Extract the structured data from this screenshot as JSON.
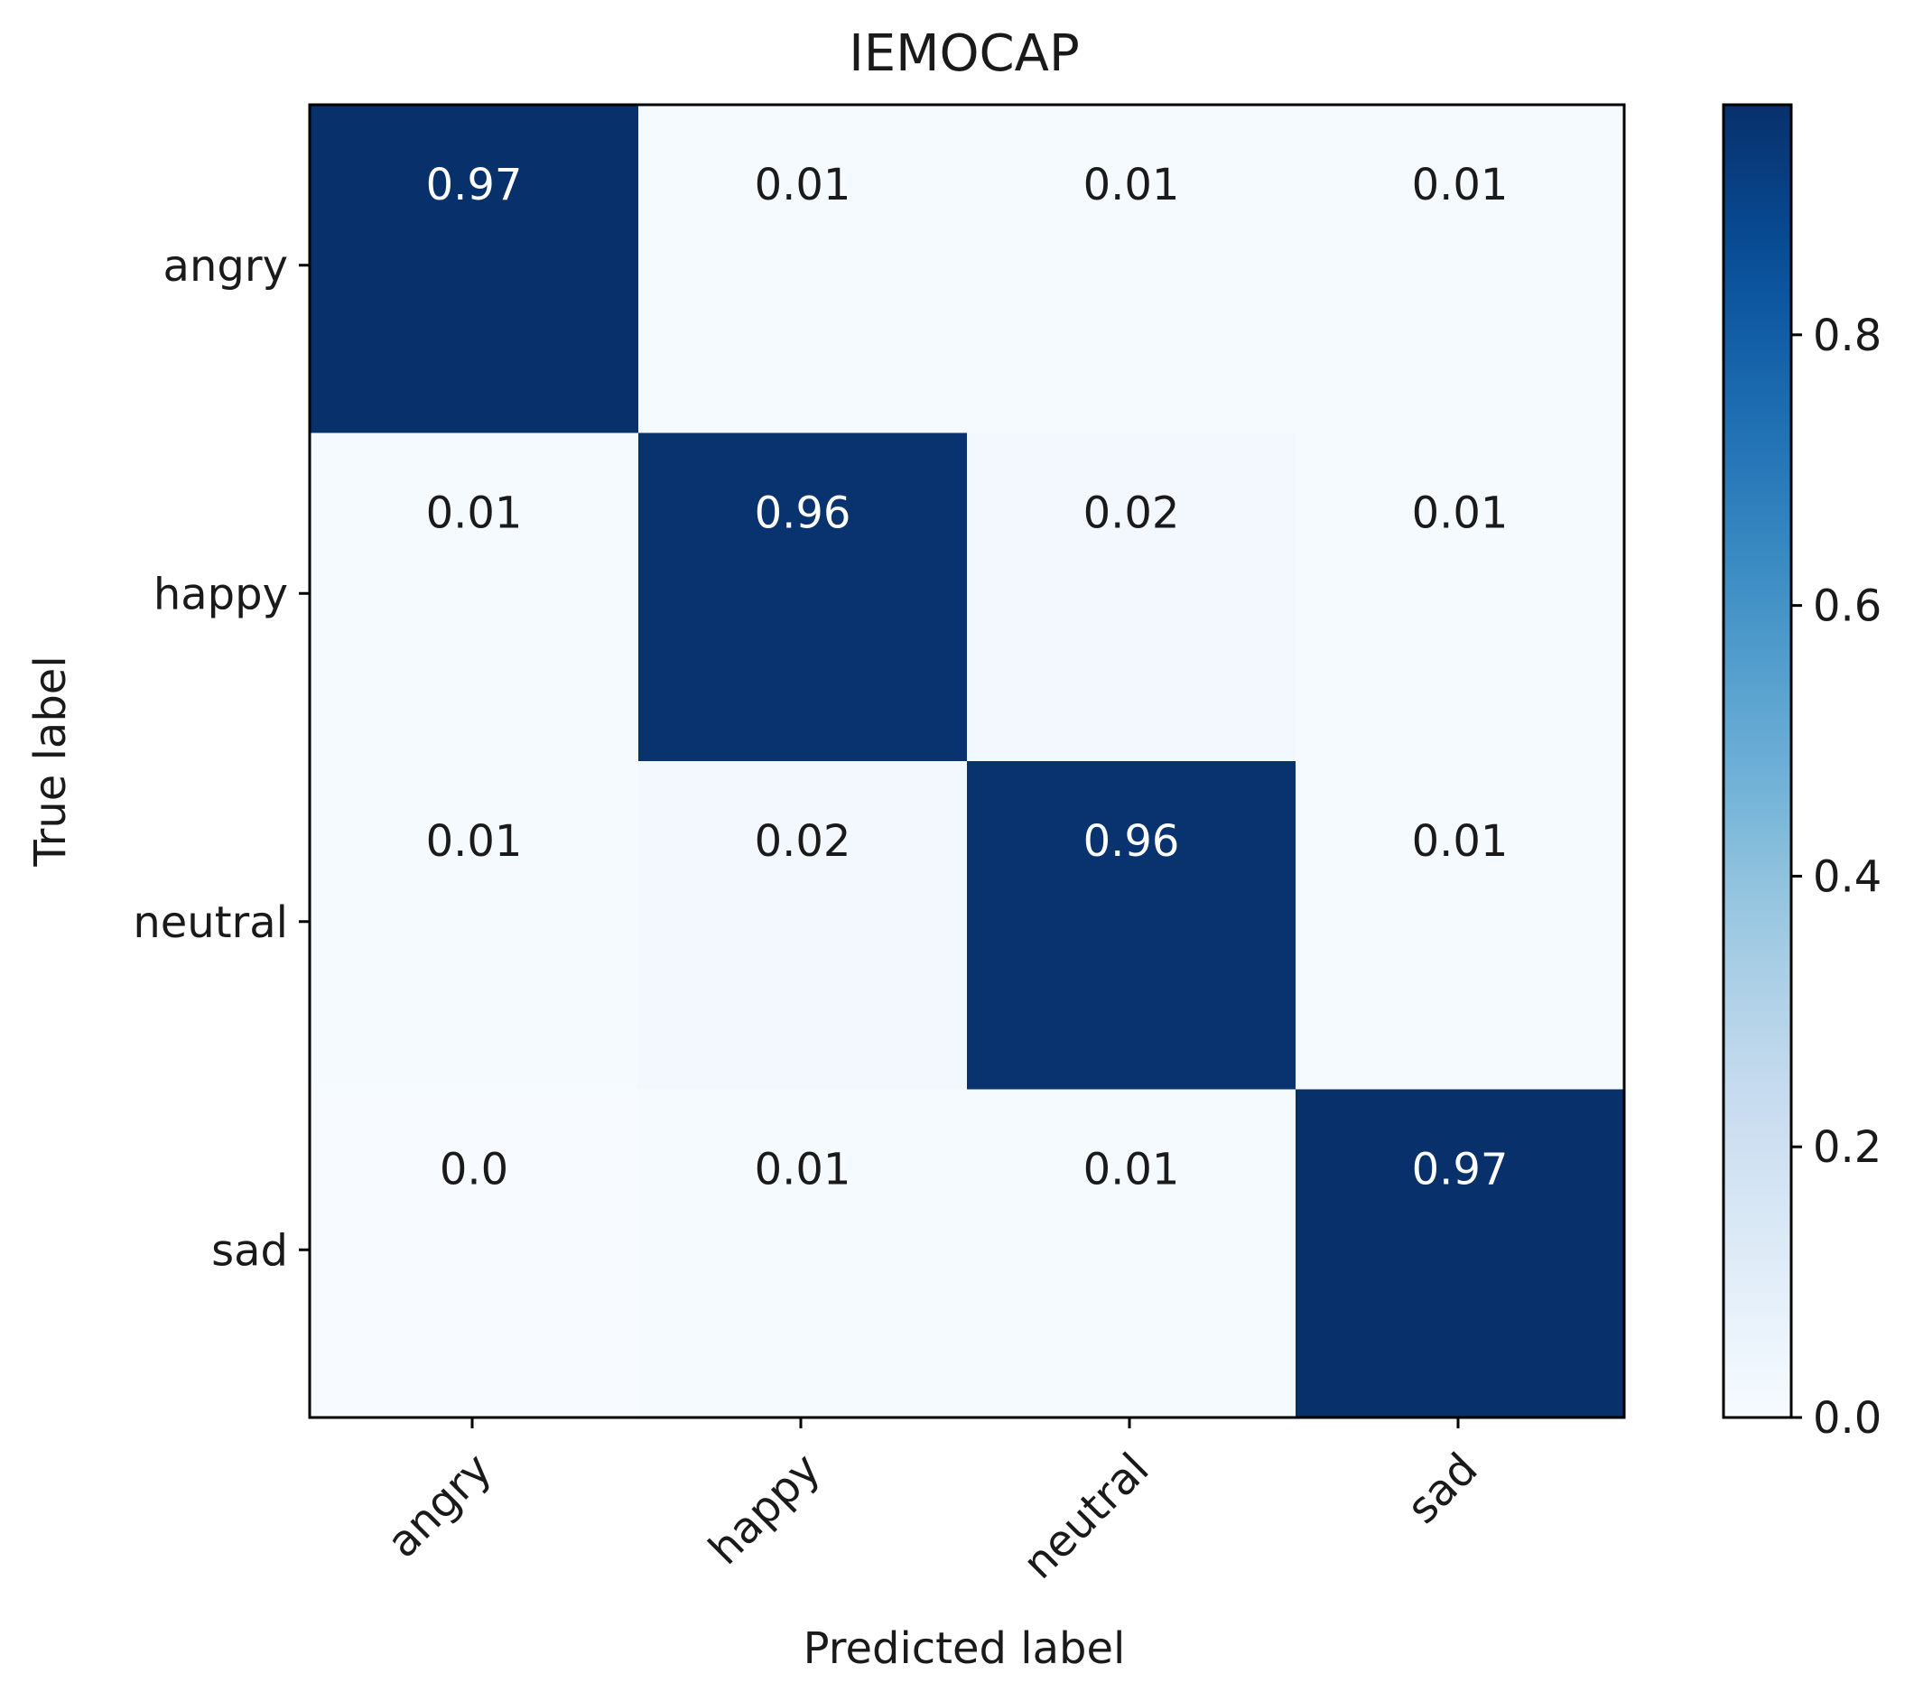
{
  "chart_data": {
    "type": "heatmap",
    "title": "IEMOCAP",
    "xlabel": "Predicted label",
    "ylabel": "True label",
    "x_categories": [
      "angry",
      "happy",
      "neutral",
      "sad"
    ],
    "y_categories": [
      "angry",
      "happy",
      "neutral",
      "sad"
    ],
    "values": [
      [
        0.97,
        0.01,
        0.01,
        0.01
      ],
      [
        0.01,
        0.96,
        0.02,
        0.01
      ],
      [
        0.01,
        0.02,
        0.96,
        0.01
      ],
      [
        0.0,
        0.01,
        0.01,
        0.97
      ]
    ],
    "value_labels": [
      [
        "0.97",
        "0.01",
        "0.01",
        "0.01"
      ],
      [
        "0.01",
        "0.96",
        "0.02",
        "0.01"
      ],
      [
        "0.01",
        "0.02",
        "0.96",
        "0.01"
      ],
      [
        "0.0",
        "0.01",
        "0.01",
        "0.97"
      ]
    ],
    "colormap": "Blues",
    "colorbar": {
      "range": [
        0.0,
        0.97
      ],
      "ticks": [
        0.0,
        0.2,
        0.4,
        0.6,
        0.8
      ],
      "tick_labels": [
        "0.0",
        "0.2",
        "0.4",
        "0.6",
        "0.8"
      ]
    },
    "colors": {
      "low": "#f7fbff",
      "high": "#08306b",
      "text_on_dark": "#ffffff",
      "text_on_light": "#1a1a1a"
    },
    "grid": false
  }
}
